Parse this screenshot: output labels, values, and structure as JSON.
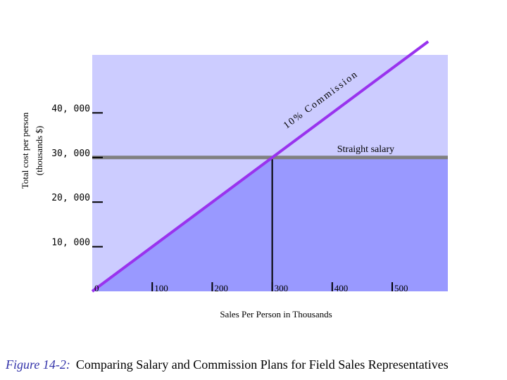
{
  "chart_data": {
    "type": "line",
    "title": "",
    "xlabel": "Sales Per Person in Thousands",
    "ylabel_line1": "Total cost per person",
    "ylabel_line2": "(thousands $)",
    "x_ticks": [
      {
        "value": 0,
        "label": "0"
      },
      {
        "value": 100,
        "label": "100"
      },
      {
        "value": 200,
        "label": "200"
      },
      {
        "value": 300,
        "label": "300"
      },
      {
        "value": 400,
        "label": "400"
      },
      {
        "value": 500,
        "label": "500"
      }
    ],
    "y_ticks": [
      {
        "value": 10000,
        "label": "10, 000"
      },
      {
        "value": 20000,
        "label": "20, 000"
      },
      {
        "value": 30000,
        "label": "30, 000"
      },
      {
        "value": 40000,
        "label": "40, 000"
      }
    ],
    "xlim": [
      0,
      590
    ],
    "ylim": [
      0,
      56000
    ],
    "series": [
      {
        "name": "10% Commission",
        "x": [
          0,
          560
        ],
        "y": [
          0,
          56000
        ],
        "color": "#9933ee"
      },
      {
        "name": "Straight salary",
        "x": [
          0,
          590
        ],
        "y": [
          30000,
          30000
        ],
        "color": "#808080"
      }
    ],
    "breakeven": {
      "x": 300,
      "y": 30000
    },
    "colors": {
      "region_light": "#ccccff",
      "region_dark": "#9999ff",
      "commission_line": "#9933ee",
      "salary_line": "#808080",
      "breakeven_line": "#000000"
    }
  },
  "caption": {
    "figure_label": "Figure 14-2:",
    "text": "Comparing Salary and Commission Plans for Field Sales Representatives"
  }
}
